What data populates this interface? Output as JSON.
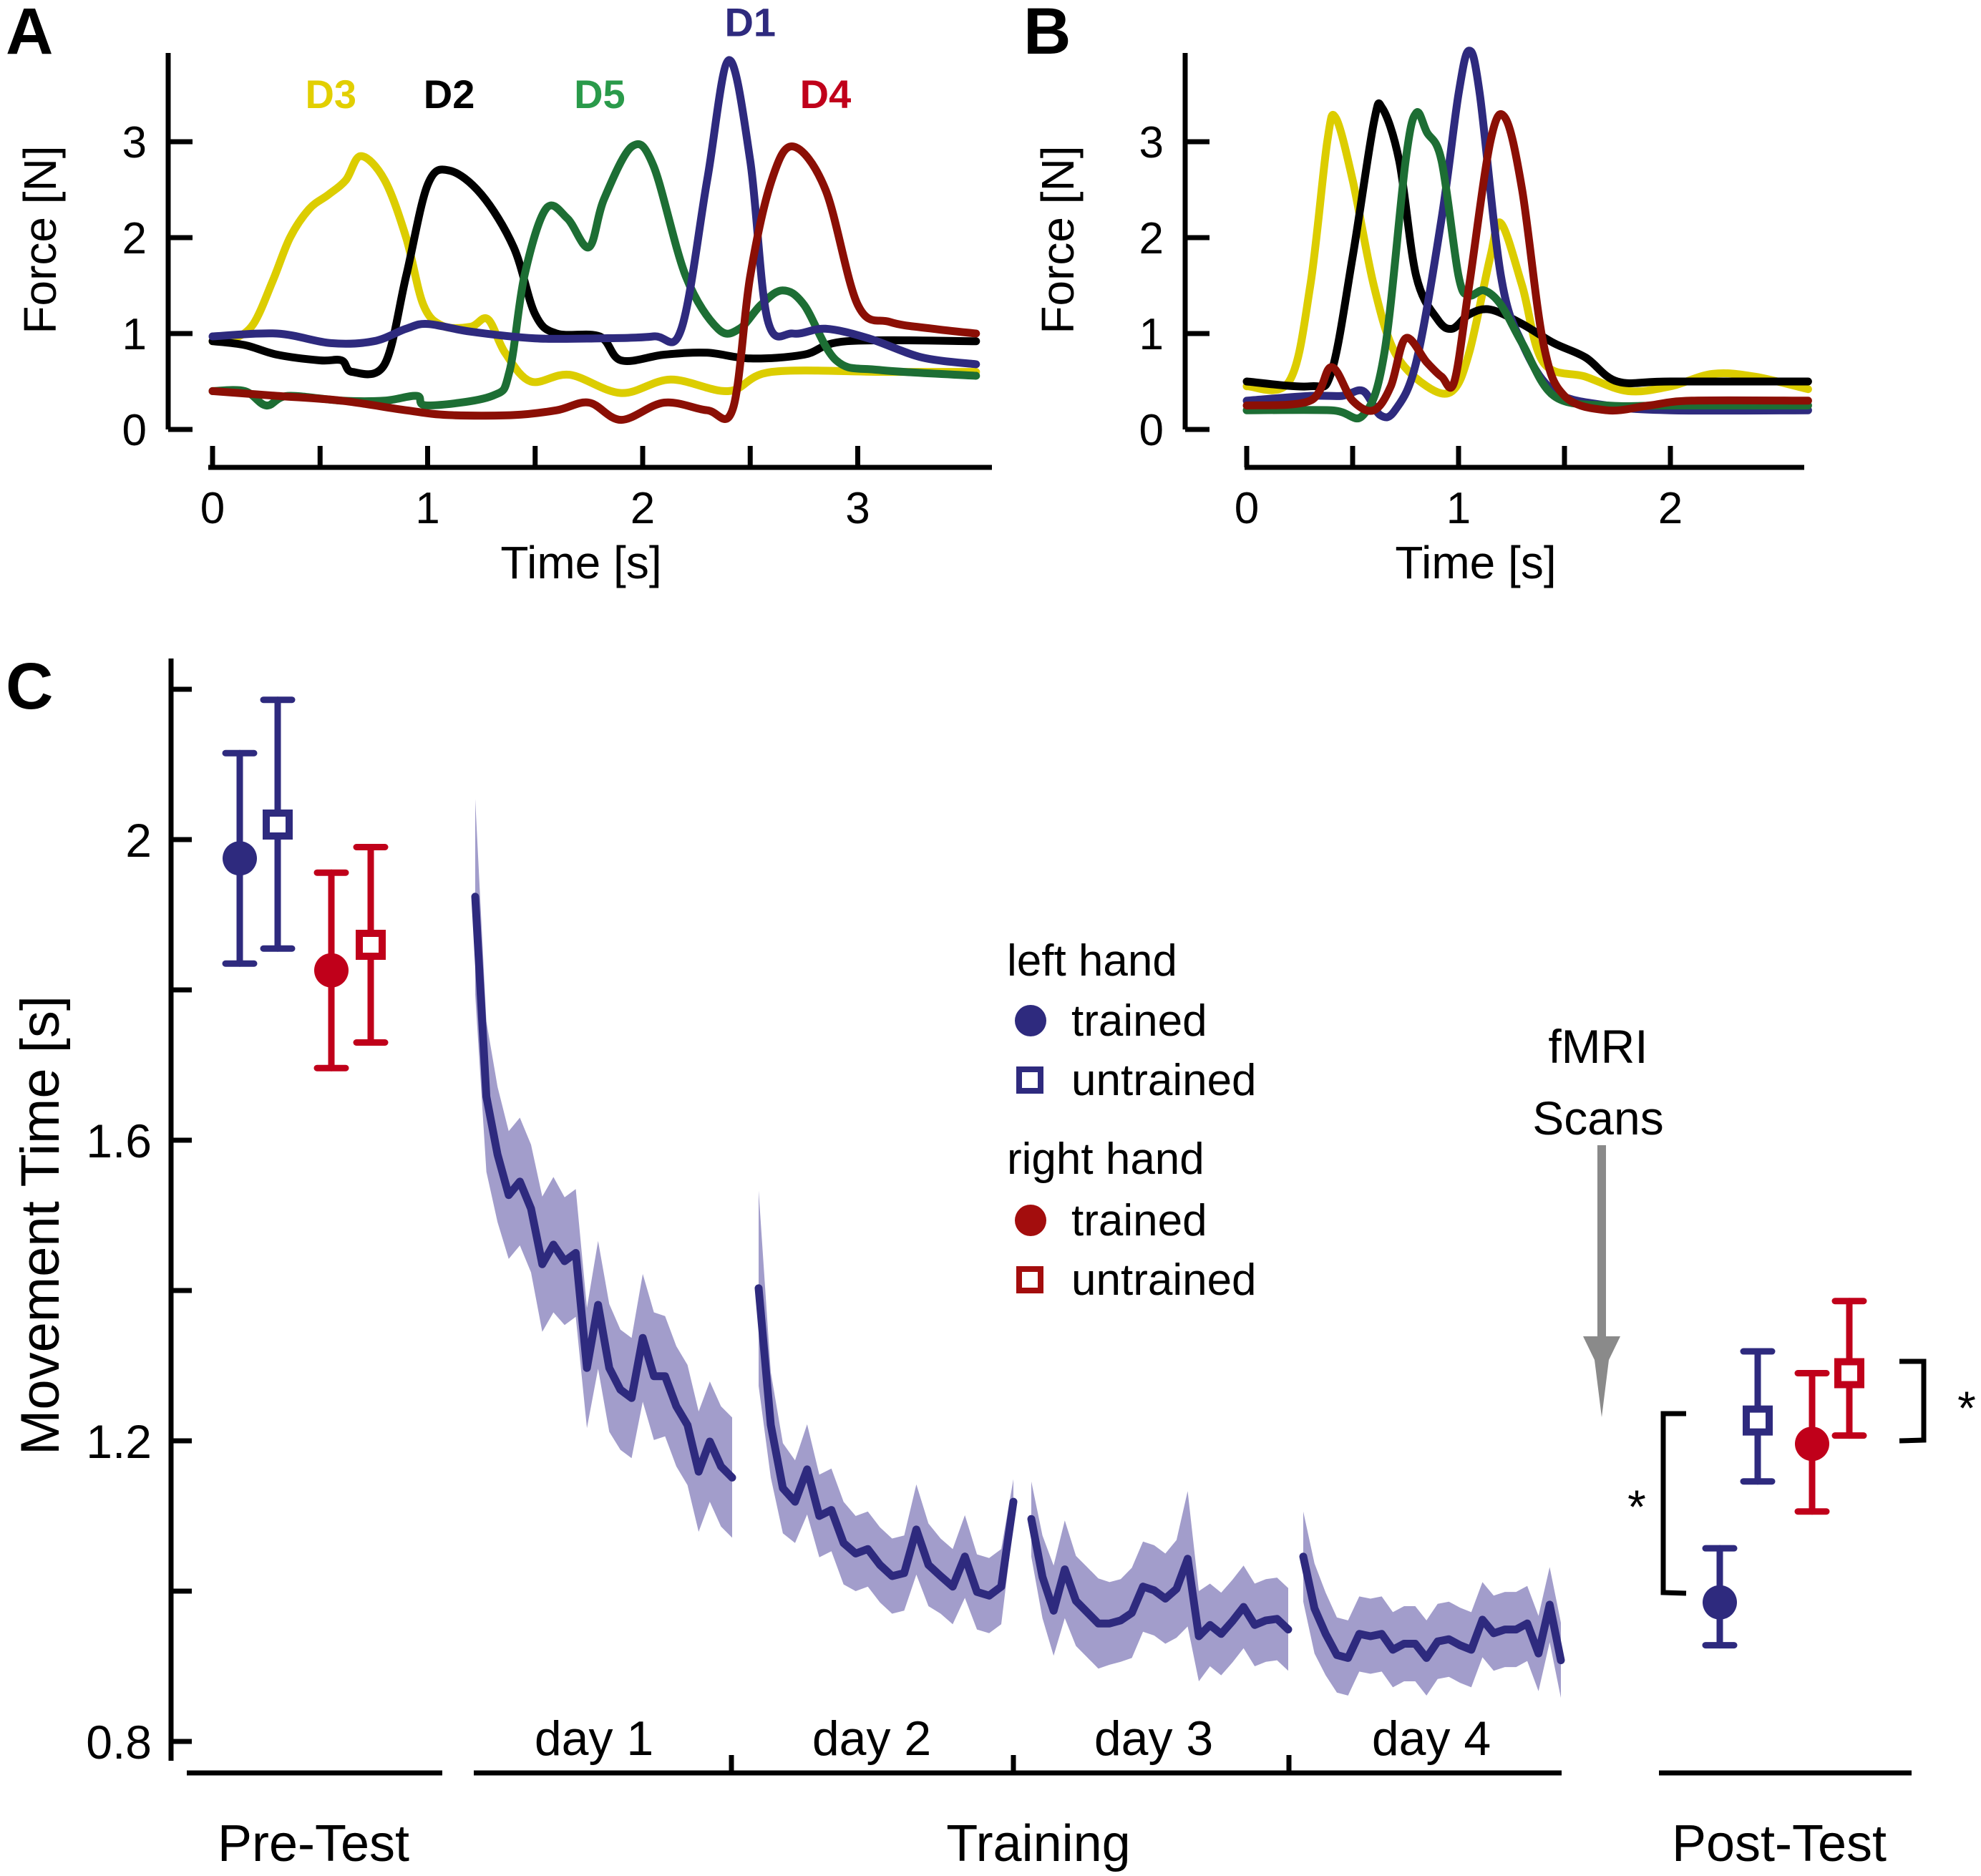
{
  "colors": {
    "D1": "#2e2a7e",
    "D2": "#000000",
    "D3": "#dccd00",
    "D4": "#8b0f05",
    "D5": "#1d6e34",
    "D1_label": "#2e2a7e",
    "D2_label": "#000000",
    "D3_label": "#e2cf00",
    "D4_label": "#c0001a",
    "D5_label": "#2a9a4a",
    "left_hand": "#2e2a7e",
    "right_hand": "#c0001a",
    "legend_right": "#a30d0d",
    "band": "#a29dcb",
    "arrow": "#8a8a8a"
  },
  "chart_data": [
    {
      "panel": "A",
      "type": "line",
      "panel_label": "A",
      "xlabel": "Time [s]",
      "ylabel": "Force [N]",
      "xlim": [
        0,
        3.55
      ],
      "ylim": [
        0,
        3.9
      ],
      "xticks": [
        0,
        0.5,
        1,
        1.5,
        2,
        2.5,
        3
      ],
      "xtick_labels": [
        "0",
        "",
        "1",
        "",
        "2",
        "",
        "3"
      ],
      "yticks": [
        0,
        1,
        2,
        3
      ],
      "ytick_labels": [
        "0",
        "1",
        "2",
        "3"
      ],
      "grid": false,
      "series": [
        {
          "name": "D3",
          "label_pos": [
            0.55,
            3.35
          ],
          "t": [
            0,
            0.1,
            0.19,
            0.28,
            0.36,
            0.45,
            0.54,
            0.62,
            0.69,
            0.8,
            0.9,
            0.98,
            1.07,
            1.2,
            1.28,
            1.36,
            1.48,
            1.66,
            1.9,
            2.13,
            2.4,
            2.6,
            3.13,
            3.55
          ],
          "force": [
            0.92,
            0.95,
            1.1,
            1.55,
            2.0,
            2.3,
            2.45,
            2.6,
            2.85,
            2.6,
            2.0,
            1.3,
            1.08,
            1.07,
            1.15,
            0.8,
            0.5,
            0.57,
            0.38,
            0.52,
            0.4,
            0.6,
            0.6,
            0.6
          ]
        },
        {
          "name": "D2",
          "label_pos": [
            1.1,
            3.35
          ],
          "t": [
            0,
            0.15,
            0.3,
            0.5,
            0.6,
            0.65,
            0.8,
            0.9,
            1.0,
            1.1,
            1.25,
            1.4,
            1.5,
            1.6,
            1.8,
            1.9,
            2.1,
            2.3,
            2.5,
            2.75,
            2.95,
            3.55
          ],
          "force": [
            0.92,
            0.88,
            0.78,
            0.72,
            0.72,
            0.6,
            0.68,
            1.6,
            2.55,
            2.7,
            2.45,
            1.9,
            1.2,
            1.0,
            0.97,
            0.72,
            0.78,
            0.8,
            0.74,
            0.78,
            0.92,
            0.92
          ]
        },
        {
          "name": "D5",
          "label_pos": [
            1.8,
            3.35
          ],
          "t": [
            0,
            0.15,
            0.25,
            0.35,
            0.6,
            0.8,
            0.95,
            1.0,
            1.3,
            1.38,
            1.45,
            1.55,
            1.65,
            1.75,
            1.82,
            1.95,
            2.05,
            2.2,
            2.35,
            2.45,
            2.55,
            2.65,
            2.75,
            2.9,
            3.1,
            3.55
          ],
          "force": [
            0.4,
            0.4,
            0.25,
            0.35,
            0.3,
            0.3,
            0.35,
            0.25,
            0.35,
            0.6,
            1.6,
            2.3,
            2.2,
            1.9,
            2.4,
            2.95,
            2.75,
            1.6,
            1.05,
            1.05,
            1.3,
            1.45,
            1.3,
            0.72,
            0.62,
            0.56
          ]
        },
        {
          "name": "D1",
          "label_pos": [
            2.5,
            4.1
          ],
          "t": [
            0,
            0.3,
            0.55,
            0.75,
            0.9,
            1.0,
            1.2,
            1.5,
            1.8,
            2.05,
            2.18,
            2.3,
            2.4,
            2.5,
            2.58,
            2.7,
            2.85,
            3.05,
            3.3,
            3.55
          ],
          "force": [
            0.97,
            1.0,
            0.9,
            0.92,
            1.05,
            1.1,
            1.02,
            0.95,
            0.95,
            0.97,
            1.05,
            2.6,
            3.85,
            2.8,
            1.15,
            1.0,
            1.05,
            0.95,
            0.75,
            0.68
          ]
        },
        {
          "name": "D4",
          "label_pos": [
            2.85,
            3.35
          ],
          "t": [
            0,
            0.3,
            0.6,
            0.9,
            1.1,
            1.4,
            1.6,
            1.75,
            1.9,
            2.1,
            2.3,
            2.42,
            2.5,
            2.6,
            2.7,
            2.85,
            3.0,
            3.15,
            3.35,
            3.55
          ],
          "force": [
            0.4,
            0.35,
            0.3,
            0.2,
            0.15,
            0.15,
            0.2,
            0.28,
            0.1,
            0.28,
            0.2,
            0.22,
            1.6,
            2.6,
            2.95,
            2.5,
            1.3,
            1.12,
            1.05,
            1.0
          ]
        }
      ]
    },
    {
      "panel": "B",
      "type": "line",
      "panel_label": "B",
      "xlabel": "Time [s]",
      "ylabel": "Force [N]",
      "xlim": [
        0,
        2.65
      ],
      "ylim": [
        0,
        3.9
      ],
      "xticks": [
        0,
        0.5,
        1,
        1.5,
        2
      ],
      "xtick_labels": [
        "0",
        "",
        "1",
        "",
        "2"
      ],
      "yticks": [
        0,
        1,
        2,
        3
      ],
      "ytick_labels": [
        "0",
        "1",
        "2",
        "3"
      ],
      "grid": false,
      "series": [
        {
          "name": "D3",
          "t": [
            0,
            0.2,
            0.3,
            0.38,
            0.42,
            0.5,
            0.6,
            0.7,
            0.85,
            0.97,
            1.05,
            1.15,
            1.2,
            1.3,
            1.4,
            1.6,
            1.8,
            2.0,
            2.2,
            2.4,
            2.65
          ],
          "force": [
            0.45,
            0.5,
            1.5,
            3.0,
            3.25,
            2.6,
            1.5,
            0.8,
            0.45,
            0.4,
            0.8,
            1.8,
            2.15,
            1.5,
            0.7,
            0.55,
            0.4,
            0.45,
            0.58,
            0.55,
            0.42
          ]
        },
        {
          "name": "D2",
          "t": [
            0,
            0.3,
            0.4,
            0.5,
            0.6,
            0.64,
            0.72,
            0.8,
            0.9,
            0.97,
            1.05,
            1.15,
            1.3,
            1.45,
            1.6,
            1.75,
            2.0,
            2.65
          ],
          "force": [
            0.5,
            0.45,
            0.6,
            1.8,
            3.2,
            3.35,
            2.8,
            1.6,
            1.15,
            1.05,
            1.2,
            1.25,
            1.1,
            0.9,
            0.75,
            0.5,
            0.5,
            0.5
          ]
        },
        {
          "name": "D1",
          "t": [
            0,
            0.3,
            0.45,
            0.55,
            0.63,
            0.7,
            0.8,
            0.92,
            1.0,
            1.05,
            1.1,
            1.2,
            1.3,
            1.45,
            1.7,
            2.0,
            2.65
          ],
          "force": [
            0.3,
            0.35,
            0.35,
            0.4,
            0.15,
            0.2,
            0.7,
            2.2,
            3.5,
            3.95,
            3.5,
            1.6,
            0.9,
            0.4,
            0.25,
            0.2,
            0.2
          ]
        },
        {
          "name": "D5",
          "t": [
            0,
            0.4,
            0.55,
            0.65,
            0.75,
            0.8,
            0.85,
            0.92,
            1.0,
            1.05,
            1.12,
            1.2,
            1.3,
            1.45,
            1.7,
            2.0,
            2.65
          ],
          "force": [
            0.2,
            0.2,
            0.15,
            0.8,
            2.8,
            3.3,
            3.1,
            2.8,
            1.6,
            1.4,
            1.45,
            1.3,
            0.9,
            0.35,
            0.25,
            0.25,
            0.25
          ]
        },
        {
          "name": "D4",
          "t": [
            0,
            0.3,
            0.4,
            0.5,
            0.6,
            0.68,
            0.75,
            0.85,
            0.92,
            0.98,
            1.05,
            1.15,
            1.22,
            1.3,
            1.4,
            1.5,
            1.7,
            1.9,
            2.1,
            2.65
          ],
          "force": [
            0.25,
            0.3,
            0.65,
            0.3,
            0.2,
            0.45,
            0.95,
            0.7,
            0.55,
            0.5,
            1.5,
            3.0,
            3.25,
            2.5,
            0.9,
            0.35,
            0.2,
            0.25,
            0.3,
            0.3
          ]
        }
      ]
    },
    {
      "panel": "C",
      "type": "line",
      "panel_label": "C",
      "ylabel": "Movement Time [s]",
      "ylim": [
        0.775,
        2.24
      ],
      "yticks": [
        0.8,
        1.0,
        1.2,
        1.4,
        1.6,
        1.8,
        2.0,
        2.2
      ],
      "ytick_labels": [
        "0.8",
        "",
        "1.2",
        "",
        "1.6",
        "",
        "2",
        ""
      ],
      "grid": false,
      "phases": [
        "Pre-Test",
        "Training",
        "Post-Test"
      ],
      "day_labels": [
        "day 1",
        "day 2",
        "day 3",
        "day 4"
      ],
      "pre_test": [
        {
          "hand": "left",
          "condition": "trained",
          "marker": "filled-circle",
          "mean": 1.975,
          "upper": 2.115,
          "lower": 1.835
        },
        {
          "hand": "left",
          "condition": "untrained",
          "marker": "open-square",
          "mean": 2.02,
          "upper": 2.186,
          "lower": 1.855
        },
        {
          "hand": "right",
          "condition": "trained",
          "marker": "filled-circle",
          "mean": 1.826,
          "upper": 1.956,
          "lower": 1.696
        },
        {
          "hand": "right",
          "condition": "untrained",
          "marker": "open-square",
          "mean": 1.86,
          "upper": 1.99,
          "lower": 1.73
        }
      ],
      "post_test": [
        {
          "hand": "left",
          "condition": "trained",
          "marker": "filled-circle",
          "mean": 0.985,
          "upper": 1.057,
          "lower": 0.928
        },
        {
          "hand": "left",
          "condition": "untrained",
          "marker": "open-square",
          "mean": 1.227,
          "upper": 1.319,
          "lower": 1.146
        },
        {
          "hand": "right",
          "condition": "trained",
          "marker": "filled-circle",
          "mean": 1.196,
          "upper": 1.29,
          "lower": 1.106
        },
        {
          "hand": "right",
          "condition": "untrained",
          "marker": "open-square",
          "mean": 1.29,
          "upper": 1.386,
          "lower": 1.207
        }
      ],
      "significance": [
        {
          "between": [
            "left trained",
            "left untrained"
          ],
          "label": "*"
        },
        {
          "between": [
            "right trained",
            "right untrained"
          ],
          "label": "*"
        }
      ],
      "training_series_name": "left hand trained (mean ± band)",
      "training": [
        {
          "day": "day 1",
          "mean": [
            1.924,
            1.658,
            1.581,
            1.527,
            1.545,
            1.509,
            1.435,
            1.461,
            1.439,
            1.45,
            1.297,
            1.381,
            1.297,
            1.268,
            1.257,
            1.337,
            1.286,
            1.286,
            1.246,
            1.221,
            1.159,
            1.199,
            1.166,
            1.151
          ],
          "band": [
            0.13,
            0.1,
            0.09,
            0.085,
            0.085,
            0.085,
            0.09,
            0.09,
            0.085,
            0.085,
            0.08,
            0.085,
            0.085,
            0.08,
            0.08,
            0.085,
            0.085,
            0.08,
            0.08,
            0.08,
            0.08,
            0.08,
            0.08,
            0.08
          ]
        },
        {
          "day": "day 2",
          "mean": [
            1.403,
            1.221,
            1.137,
            1.119,
            1.162,
            1.1,
            1.108,
            1.064,
            1.05,
            1.056,
            1.035,
            1.02,
            1.024,
            1.082,
            1.035,
            1.02,
            1.006,
            1.046,
            0.999,
            0.994,
            1.006,
            1.119
          ],
          "band": [
            0.13,
            0.07,
            0.06,
            0.055,
            0.06,
            0.055,
            0.055,
            0.055,
            0.05,
            0.05,
            0.05,
            0.05,
            0.05,
            0.06,
            0.055,
            0.05,
            0.05,
            0.055,
            0.05,
            0.05,
            0.05,
            0.03
          ]
        },
        {
          "day": "day 3",
          "mean": [
            1.096,
            1.019,
            0.974,
            1.029,
            0.987,
            0.972,
            0.957,
            0.957,
            0.961,
            0.971,
            1.006,
            1.001,
            0.99,
            1.003,
            1.043,
            0.94,
            0.955,
            0.943,
            0.96,
            0.979,
            0.955,
            0.961,
            0.963,
            0.949
          ],
          "band": [
            0.05,
            0.055,
            0.06,
            0.065,
            0.06,
            0.06,
            0.06,
            0.055,
            0.055,
            0.06,
            0.06,
            0.06,
            0.06,
            0.065,
            0.09,
            0.06,
            0.055,
            0.055,
            0.055,
            0.055,
            0.055,
            0.055,
            0.055,
            0.055
          ]
        },
        {
          "day": "day 4",
          "mean": [
            1.046,
            0.977,
            0.943,
            0.915,
            0.911,
            0.943,
            0.94,
            0.943,
            0.922,
            0.93,
            0.93,
            0.911,
            0.933,
            0.936,
            0.928,
            0.922,
            0.962,
            0.944,
            0.949,
            0.949,
            0.957,
            0.917,
            0.982,
            0.908
          ],
          "band": [
            0.06,
            0.06,
            0.055,
            0.05,
            0.05,
            0.05,
            0.05,
            0.05,
            0.05,
            0.05,
            0.05,
            0.05,
            0.05,
            0.05,
            0.05,
            0.05,
            0.05,
            0.05,
            0.05,
            0.05,
            0.05,
            0.05,
            0.05,
            0.05
          ]
        }
      ],
      "annotation": {
        "line1": "fMRI",
        "line2": "Scans"
      },
      "legend": {
        "placement": "center",
        "groups": [
          {
            "title": "left hand",
            "items": [
              {
                "marker": "filled-circle",
                "label": "trained"
              },
              {
                "marker": "open-square",
                "label": "untrained"
              }
            ]
          },
          {
            "title": "right hand",
            "items": [
              {
                "marker": "filled-circle",
                "label": "trained"
              },
              {
                "marker": "open-square",
                "label": "untrained"
              }
            ]
          }
        ]
      }
    }
  ]
}
